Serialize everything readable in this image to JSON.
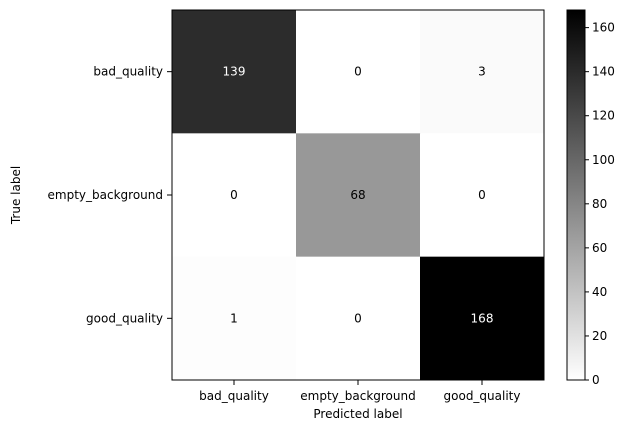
{
  "chart_data": {
    "type": "heatmap",
    "title": "",
    "xlabel": "Predicted label",
    "ylabel": "True label",
    "x_categories": [
      "bad_quality",
      "empty_background",
      "good_quality"
    ],
    "y_categories": [
      "bad_quality",
      "empty_background",
      "good_quality"
    ],
    "matrix": [
      [
        139,
        0,
        3
      ],
      [
        0,
        68,
        0
      ],
      [
        1,
        0,
        168
      ]
    ],
    "colormap": "Greys",
    "colorbar": {
      "min": 0,
      "max": 168,
      "ticks": [
        0,
        20,
        40,
        60,
        80,
        100,
        120,
        140,
        160
      ]
    },
    "cell_text_dark_color": "#000000",
    "cell_text_light_color": "#ffffff"
  }
}
